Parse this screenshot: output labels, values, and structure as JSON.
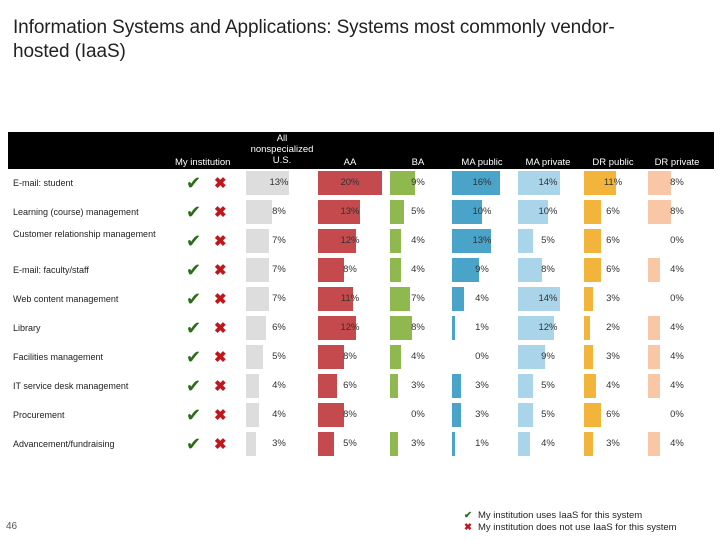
{
  "title": "Information Systems and Applications: Systems most commonly vendor-hosted (IaaS)",
  "slide_number": "46",
  "symbols": {
    "check": "✔",
    "cross": "✖"
  },
  "colors": {
    "check": "#2a6e1a",
    "cross": "#c0161d",
    "AA": "#c44a4e",
    "BA": "#8fb84f",
    "MA_public": "#4aa3c8",
    "MA_private": "#aad4ea",
    "DR_public": "#f3b43c",
    "DR_private": "#f9c7a6",
    "nonspecialized": "#dddddd"
  },
  "legend": [
    {
      "symbol": "✔",
      "label": "My institution uses IaaS for this system",
      "icon": "check-icon"
    },
    {
      "symbol": "✖",
      "label": "My institution does not use IaaS for this system",
      "icon": "cross-icon"
    }
  ],
  "chart_data": {
    "type": "table",
    "title": "Information Systems and Applications: Systems most commonly vendor-hosted (IaaS)",
    "columns": [
      "My institution",
      "All nonspecialized U.S.",
      "AA",
      "BA",
      "MA public",
      "MA private",
      "DR public",
      "DR private"
    ],
    "column_keys": [
      "nonspecialized",
      "AA",
      "BA",
      "MA_public",
      "MA_private",
      "DR_public",
      "DR_private"
    ],
    "value_scale_max": 20,
    "rows": [
      {
        "label": "E-mail: student",
        "values": [
          13,
          20,
          9,
          16,
          14,
          11,
          8
        ]
      },
      {
        "label": "Learning (course) management",
        "values": [
          8,
          13,
          5,
          10,
          10,
          6,
          8
        ]
      },
      {
        "label": "Customer relationship management",
        "values": [
          7,
          12,
          4,
          13,
          5,
          6,
          0
        ]
      },
      {
        "label": "E-mail: faculty/staff",
        "values": [
          7,
          8,
          4,
          9,
          8,
          6,
          4
        ]
      },
      {
        "label": "Web content management",
        "values": [
          7,
          11,
          7,
          4,
          14,
          3,
          0
        ]
      },
      {
        "label": "Library",
        "values": [
          6,
          12,
          8,
          1,
          12,
          2,
          4
        ]
      },
      {
        "label": "Facilities management",
        "values": [
          5,
          8,
          4,
          0,
          9,
          3,
          4
        ]
      },
      {
        "label": "IT service desk management",
        "values": [
          4,
          6,
          3,
          3,
          5,
          4,
          4
        ]
      },
      {
        "label": "Procurement",
        "values": [
          4,
          8,
          0,
          3,
          5,
          6,
          0
        ]
      },
      {
        "label": "Advancement/fundraising",
        "values": [
          3,
          5,
          3,
          1,
          4,
          3,
          4
        ]
      }
    ]
  }
}
